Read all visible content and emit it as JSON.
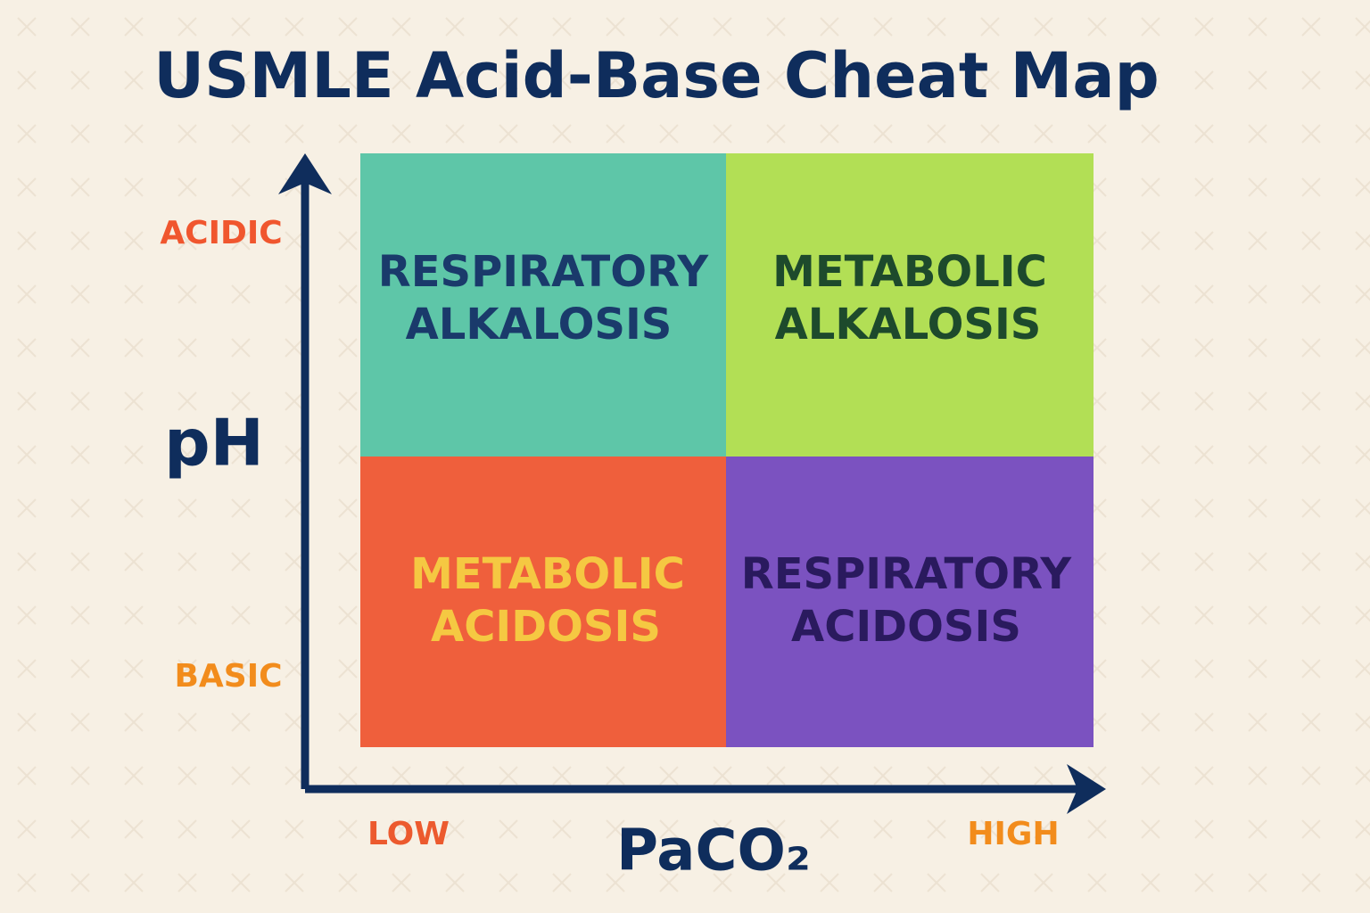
{
  "title": "USMLE Acid-Base Cheat Map",
  "y_axis": {
    "label": "pH",
    "top": "ACIDIC",
    "bottom": "BASIC"
  },
  "x_axis": {
    "label": "PaCO₂",
    "left": "LOW",
    "right": "HIGH"
  },
  "quadrants": [
    {
      "lines": [
        "RESPIRATORY",
        "ALKALOSIS"
      ]
    },
    {
      "lines": [
        "METABOLIC",
        "ALKALOSIS"
      ]
    },
    {
      "lines": [
        "METABOLIC",
        "ACIDOSIS"
      ]
    },
    {
      "lines": [
        "RESPIRATORY",
        "ACIDOSIS"
      ]
    }
  ]
}
